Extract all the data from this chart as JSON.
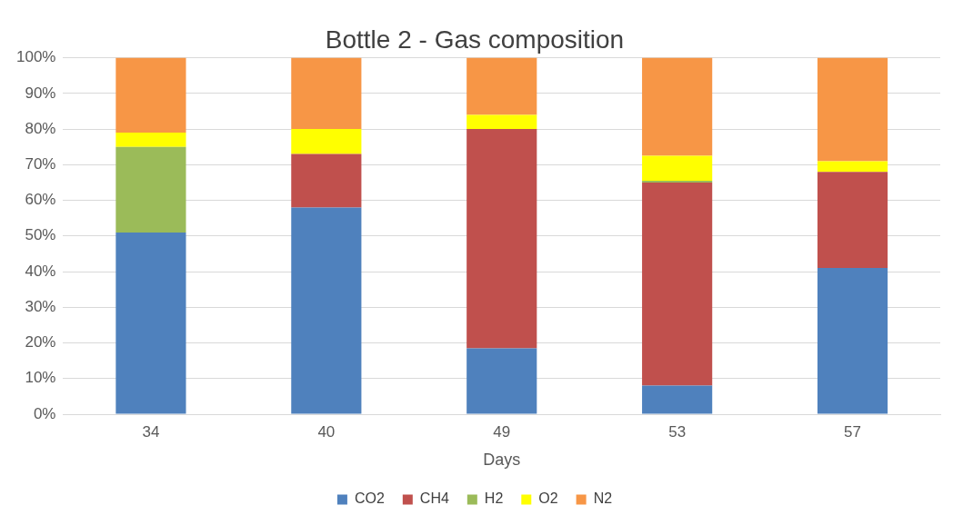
{
  "chart_data": {
    "type": "bar",
    "title": "Bottle 2 - Gas composition",
    "xlabel": "Days",
    "categories": [
      "34",
      "40",
      "49",
      "53",
      "57"
    ],
    "stacked": true,
    "series": [
      {
        "name": "CO2",
        "color": "#4f81bd",
        "values": [
          51,
          58,
          18.5,
          8,
          41
        ]
      },
      {
        "name": "CH4",
        "color": "#c0504d",
        "values": [
          0,
          15,
          61.5,
          57,
          27
        ]
      },
      {
        "name": "H2",
        "color": "#9bbb59",
        "values": [
          24,
          0,
          0,
          0.5,
          0
        ]
      },
      {
        "name": "O2",
        "color": "#ffff00",
        "values": [
          4,
          7,
          4,
          7,
          3
        ]
      },
      {
        "name": "N2",
        "color": "#f79646",
        "values": [
          21,
          20,
          16,
          27.5,
          29
        ]
      }
    ],
    "ylim": [
      0,
      100
    ],
    "yticks": [
      {
        "value": 0,
        "label": "0%"
      },
      {
        "value": 10,
        "label": "10%"
      },
      {
        "value": 20,
        "label": "20%"
      },
      {
        "value": 30,
        "label": "30%"
      },
      {
        "value": 40,
        "label": "40%"
      },
      {
        "value": 50,
        "label": "50%"
      },
      {
        "value": 60,
        "label": "60%"
      },
      {
        "value": 70,
        "label": "70%"
      },
      {
        "value": 80,
        "label": "80%"
      },
      {
        "value": 90,
        "label": "90%"
      },
      {
        "value": 100,
        "label": "100%"
      }
    ],
    "grid": "y",
    "legend": "bottom"
  }
}
